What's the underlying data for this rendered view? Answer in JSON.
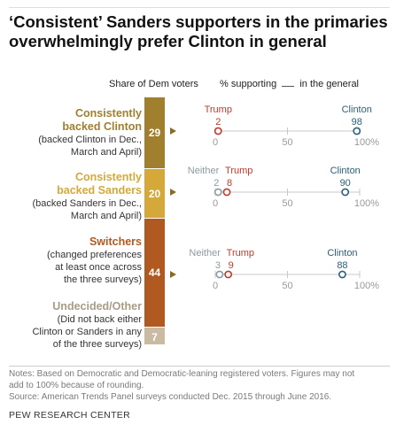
{
  "title": "‘Consistent’ Sanders supporters in the primaries overwhelmingly prefer Clinton in general",
  "headers": {
    "share": "Share of Dem voters",
    "supporting_pre": "% supporting",
    "supporting_post": "in the general"
  },
  "groups": [
    {
      "name_lines": [
        "Consistently",
        "backed Clinton"
      ],
      "desc_lines": [
        "(backed Clinton in Dec.,",
        "March and April)"
      ],
      "color": "#a07f2e"
    },
    {
      "name_lines": [
        "Consistently",
        "backed Sanders"
      ],
      "desc_lines": [
        "(backed Sanders in Dec.,",
        "March and April)"
      ],
      "color": "#d4a93a"
    },
    {
      "name_lines": [
        "Switchers"
      ],
      "desc_lines": [
        "(changed preferences",
        "at least once across",
        "the three surveys)"
      ],
      "color": "#b05a22"
    },
    {
      "name_lines": [
        "Undecided/Other"
      ],
      "desc_lines": [
        "(Did not back either",
        "Clinton or Sanders in any",
        "of the three surveys)"
      ],
      "color": "#c8bba2"
    }
  ],
  "colors": {
    "trump": "#c0392b",
    "clinton": "#2b5f7a",
    "neither": "#8a9aa3",
    "axis": "#c8c8c8"
  },
  "icons": {
    "pointer": "triangle-right-icon"
  },
  "chart_data": [
    {
      "type": "bar",
      "stacked": true,
      "orientation": "vertical",
      "title": "Share of Dem voters",
      "categories": [
        "Consistently backed Clinton",
        "Consistently backed Sanders",
        "Switchers",
        "Undecided/Other"
      ],
      "values": [
        29,
        20,
        44,
        7
      ],
      "colors": [
        "#a07f2e",
        "#d4a93a",
        "#b05a22",
        "#c8bba2"
      ]
    },
    {
      "type": "scatter",
      "style": "dot-plot",
      "title": "% supporting in the general",
      "xlim": [
        0,
        100
      ],
      "xticks": [
        0,
        50,
        100
      ],
      "xtick_labels": [
        "0",
        "50",
        "100%"
      ],
      "rows": [
        {
          "group": "Consistently backed Clinton",
          "points": [
            {
              "name": "Trump",
              "value": 2
            },
            {
              "name": "Clinton",
              "value": 98
            }
          ]
        },
        {
          "group": "Consistently backed Sanders",
          "points": [
            {
              "name": "Neither",
              "value": 2
            },
            {
              "name": "Trump",
              "value": 8
            },
            {
              "name": "Clinton",
              "value": 90
            }
          ]
        },
        {
          "group": "Switchers",
          "points": [
            {
              "name": "Neither",
              "value": 3
            },
            {
              "name": "Trump",
              "value": 9
            },
            {
              "name": "Clinton",
              "value": 88
            }
          ]
        }
      ]
    }
  ],
  "notes": [
    "Notes: Based on Democratic and Democratic-leaning registered voters. Figures may not",
    "add to 100% because of rounding.",
    "Source: American Trends Panel surveys conducted Dec. 2015 through June 2016."
  ],
  "source_org": "PEW RESEARCH CENTER"
}
